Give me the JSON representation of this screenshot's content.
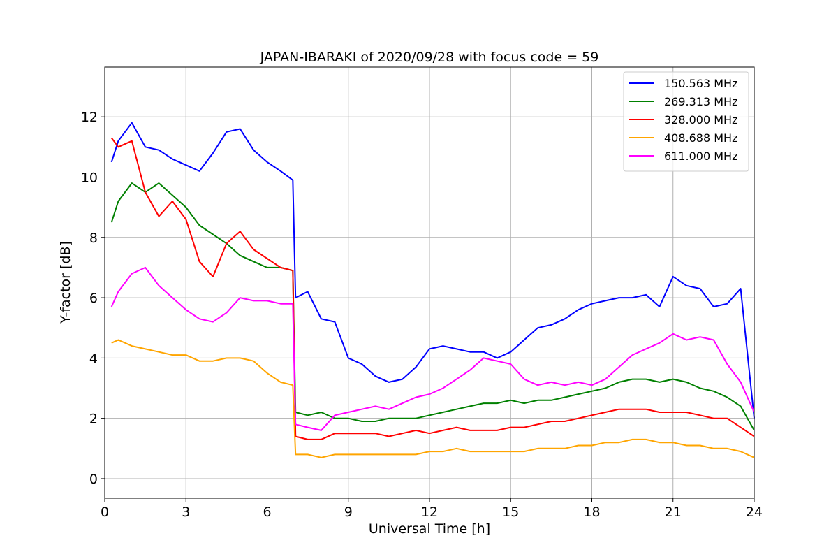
{
  "chart_data": {
    "type": "line",
    "title": "JAPAN-IBARAKI of 2020/09/28 with focus code = 59",
    "xlabel": "Universal Time [h]",
    "ylabel": "Y-factor [dB]",
    "xlim": [
      0,
      24
    ],
    "ylim": [
      -0.65,
      13.65
    ],
    "xticks": [
      0,
      3,
      6,
      9,
      12,
      15,
      18,
      21,
      24
    ],
    "yticks": [
      0,
      2,
      4,
      6,
      8,
      10,
      12
    ],
    "grid": true,
    "legend_position": "top-right",
    "series": [
      {
        "name": "150.563 MHz",
        "color": "#0000ff",
        "x": [
          0.25,
          0.5,
          1.0,
          1.5,
          2.0,
          2.5,
          3.0,
          3.5,
          4.0,
          4.5,
          5.0,
          5.5,
          6.0,
          6.5,
          6.95,
          7.05,
          7.5,
          8.0,
          8.5,
          9.0,
          9.5,
          10.0,
          10.5,
          11.0,
          11.5,
          12.0,
          12.5,
          13.0,
          13.5,
          14.0,
          14.5,
          15.0,
          15.5,
          16.0,
          16.5,
          17.0,
          17.5,
          18.0,
          18.5,
          19.0,
          19.5,
          20.0,
          20.5,
          21.0,
          21.5,
          22.0,
          22.5,
          23.0,
          23.5,
          24.0
        ],
        "values": [
          10.5,
          11.2,
          11.8,
          11.0,
          10.9,
          10.6,
          10.4,
          10.2,
          10.8,
          11.5,
          11.6,
          10.9,
          10.5,
          10.2,
          9.9,
          6.0,
          6.2,
          5.3,
          5.2,
          4.0,
          3.8,
          3.4,
          3.2,
          3.3,
          3.7,
          4.3,
          4.4,
          4.3,
          4.2,
          4.2,
          4.0,
          4.2,
          4.6,
          5.0,
          5.1,
          5.3,
          5.6,
          5.8,
          5.9,
          6.0,
          6.0,
          6.1,
          5.7,
          6.7,
          6.4,
          6.3,
          5.7,
          5.8,
          6.3,
          2.0
        ]
      },
      {
        "name": "269.313 MHz",
        "color": "#008000",
        "x": [
          0.25,
          0.5,
          1.0,
          1.5,
          2.0,
          2.5,
          3.0,
          3.5,
          4.0,
          4.5,
          5.0,
          5.5,
          6.0,
          6.5,
          6.95,
          7.05,
          7.5,
          8.0,
          8.5,
          9.0,
          9.5,
          10.0,
          10.5,
          11.0,
          11.5,
          12.0,
          12.5,
          13.0,
          13.5,
          14.0,
          14.5,
          15.0,
          15.5,
          16.0,
          16.5,
          17.0,
          17.5,
          18.0,
          18.5,
          19.0,
          19.5,
          20.0,
          20.5,
          21.0,
          21.5,
          22.0,
          22.5,
          23.0,
          23.5,
          24.0
        ],
        "values": [
          8.5,
          9.2,
          9.8,
          9.5,
          9.8,
          9.4,
          9.0,
          8.4,
          8.1,
          7.8,
          7.4,
          7.2,
          7.0,
          7.0,
          6.9,
          2.2,
          2.1,
          2.2,
          2.0,
          2.0,
          1.9,
          1.9,
          2.0,
          2.0,
          2.0,
          2.1,
          2.2,
          2.3,
          2.4,
          2.5,
          2.5,
          2.6,
          2.5,
          2.6,
          2.6,
          2.7,
          2.8,
          2.9,
          3.0,
          3.2,
          3.3,
          3.3,
          3.2,
          3.3,
          3.2,
          3.0,
          2.9,
          2.7,
          2.4,
          1.6
        ]
      },
      {
        "name": "328.000 MHz",
        "color": "#ff0000",
        "x": [
          0.25,
          0.5,
          1.0,
          1.5,
          2.0,
          2.5,
          3.0,
          3.5,
          4.0,
          4.5,
          5.0,
          5.5,
          6.0,
          6.5,
          6.95,
          7.05,
          7.5,
          8.0,
          8.5,
          9.0,
          9.5,
          10.0,
          10.5,
          11.0,
          11.5,
          12.0,
          12.5,
          13.0,
          13.5,
          14.0,
          14.5,
          15.0,
          15.5,
          16.0,
          16.5,
          17.0,
          17.5,
          18.0,
          18.5,
          19.0,
          19.5,
          20.0,
          20.5,
          21.0,
          21.5,
          22.0,
          22.5,
          23.0,
          23.5,
          24.0
        ],
        "values": [
          11.3,
          11.0,
          11.2,
          9.5,
          8.7,
          9.2,
          8.6,
          7.2,
          6.7,
          7.8,
          8.2,
          7.6,
          7.3,
          7.0,
          6.9,
          1.4,
          1.3,
          1.3,
          1.5,
          1.5,
          1.5,
          1.5,
          1.4,
          1.5,
          1.6,
          1.5,
          1.6,
          1.7,
          1.6,
          1.6,
          1.6,
          1.7,
          1.7,
          1.8,
          1.9,
          1.9,
          2.0,
          2.1,
          2.2,
          2.3,
          2.3,
          2.3,
          2.2,
          2.2,
          2.2,
          2.1,
          2.0,
          2.0,
          1.7,
          1.4
        ]
      },
      {
        "name": "408.688 MHz",
        "color": "#ffa500",
        "x": [
          0.25,
          0.5,
          1.0,
          1.5,
          2.0,
          2.5,
          3.0,
          3.5,
          4.0,
          4.5,
          5.0,
          5.5,
          6.0,
          6.5,
          6.95,
          7.05,
          7.5,
          8.0,
          8.5,
          9.0,
          9.5,
          10.0,
          10.5,
          11.0,
          11.5,
          12.0,
          12.5,
          13.0,
          13.5,
          14.0,
          14.5,
          15.0,
          15.5,
          16.0,
          16.5,
          17.0,
          17.5,
          18.0,
          18.5,
          19.0,
          19.5,
          20.0,
          20.5,
          21.0,
          21.5,
          22.0,
          22.5,
          23.0,
          23.5,
          24.0
        ],
        "values": [
          4.5,
          4.6,
          4.4,
          4.3,
          4.2,
          4.1,
          4.1,
          3.9,
          3.9,
          4.0,
          4.0,
          3.9,
          3.5,
          3.2,
          3.1,
          0.8,
          0.8,
          0.7,
          0.8,
          0.8,
          0.8,
          0.8,
          0.8,
          0.8,
          0.8,
          0.9,
          0.9,
          1.0,
          0.9,
          0.9,
          0.9,
          0.9,
          0.9,
          1.0,
          1.0,
          1.0,
          1.1,
          1.1,
          1.2,
          1.2,
          1.3,
          1.3,
          1.2,
          1.2,
          1.1,
          1.1,
          1.0,
          1.0,
          0.9,
          0.7
        ]
      },
      {
        "name": "611.000 MHz",
        "color": "#ff00ff",
        "x": [
          0.25,
          0.5,
          1.0,
          1.5,
          2.0,
          2.5,
          3.0,
          3.5,
          4.0,
          4.5,
          5.0,
          5.5,
          6.0,
          6.5,
          6.95,
          7.05,
          7.5,
          8.0,
          8.5,
          9.0,
          9.5,
          10.0,
          10.5,
          11.0,
          11.5,
          12.0,
          12.5,
          13.0,
          13.5,
          14.0,
          14.5,
          15.0,
          15.5,
          16.0,
          16.5,
          17.0,
          17.5,
          18.0,
          18.5,
          19.0,
          19.5,
          20.0,
          20.5,
          21.0,
          21.5,
          22.0,
          22.5,
          23.0,
          23.5,
          24.0
        ],
        "values": [
          5.7,
          6.2,
          6.8,
          7.0,
          6.4,
          6.0,
          5.6,
          5.3,
          5.2,
          5.5,
          6.0,
          5.9,
          5.9,
          5.8,
          5.8,
          1.8,
          1.7,
          1.6,
          2.1,
          2.2,
          2.3,
          2.4,
          2.3,
          2.5,
          2.7,
          2.8,
          3.0,
          3.3,
          3.6,
          4.0,
          3.9,
          3.8,
          3.3,
          3.1,
          3.2,
          3.1,
          3.2,
          3.1,
          3.3,
          3.7,
          4.1,
          4.3,
          4.5,
          4.8,
          4.6,
          4.7,
          4.6,
          3.8,
          3.2,
          2.2
        ]
      }
    ]
  }
}
